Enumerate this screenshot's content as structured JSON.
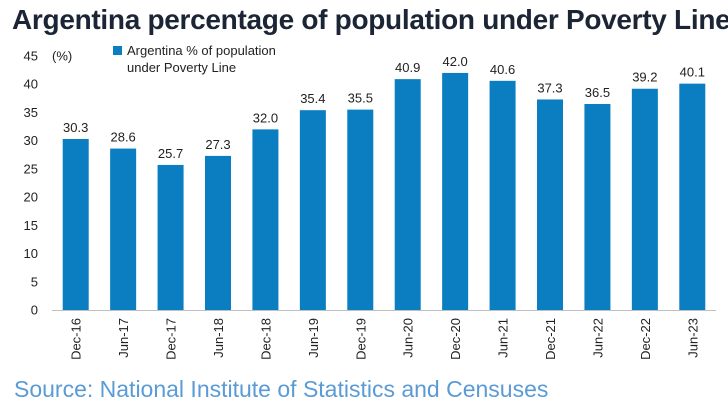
{
  "title": "Argentina percentage of population under Poverty Line",
  "source": "Source: National Institute of Statistics and Censuses",
  "chart_data": {
    "type": "bar",
    "categories": [
      "Dec-16",
      "Jun-17",
      "Dec-17",
      "Jun-18",
      "Dec-18",
      "Jun-19",
      "Dec-19",
      "Jun-20",
      "Dec-20",
      "Jun-21",
      "Dec-21",
      "Jun-22",
      "Dec-22",
      "Jun-23"
    ],
    "series": [
      {
        "name": "Argentina % of population under Poverty Line",
        "legend_lines": [
          "Argentina % of population",
          "under Poverty Line"
        ],
        "values": [
          30.3,
          28.6,
          25.7,
          27.3,
          32.0,
          35.4,
          35.5,
          40.9,
          42.0,
          40.6,
          37.3,
          36.5,
          39.2,
          40.1
        ],
        "value_labels": [
          "30.3",
          "28.6",
          "25.7",
          "27.3",
          "32.0",
          "35.4",
          "35.5",
          "40.9",
          "42.0",
          "40.6",
          "37.3",
          "36.5",
          "39.2",
          "40.1"
        ],
        "color": "#0a7ec0"
      }
    ],
    "yunit": "(%)",
    "ylim": [
      0,
      45
    ],
    "yticks": [
      0,
      5,
      10,
      15,
      20,
      25,
      30,
      35,
      40,
      45
    ],
    "grid": false,
    "legend_position": "top-left"
  }
}
